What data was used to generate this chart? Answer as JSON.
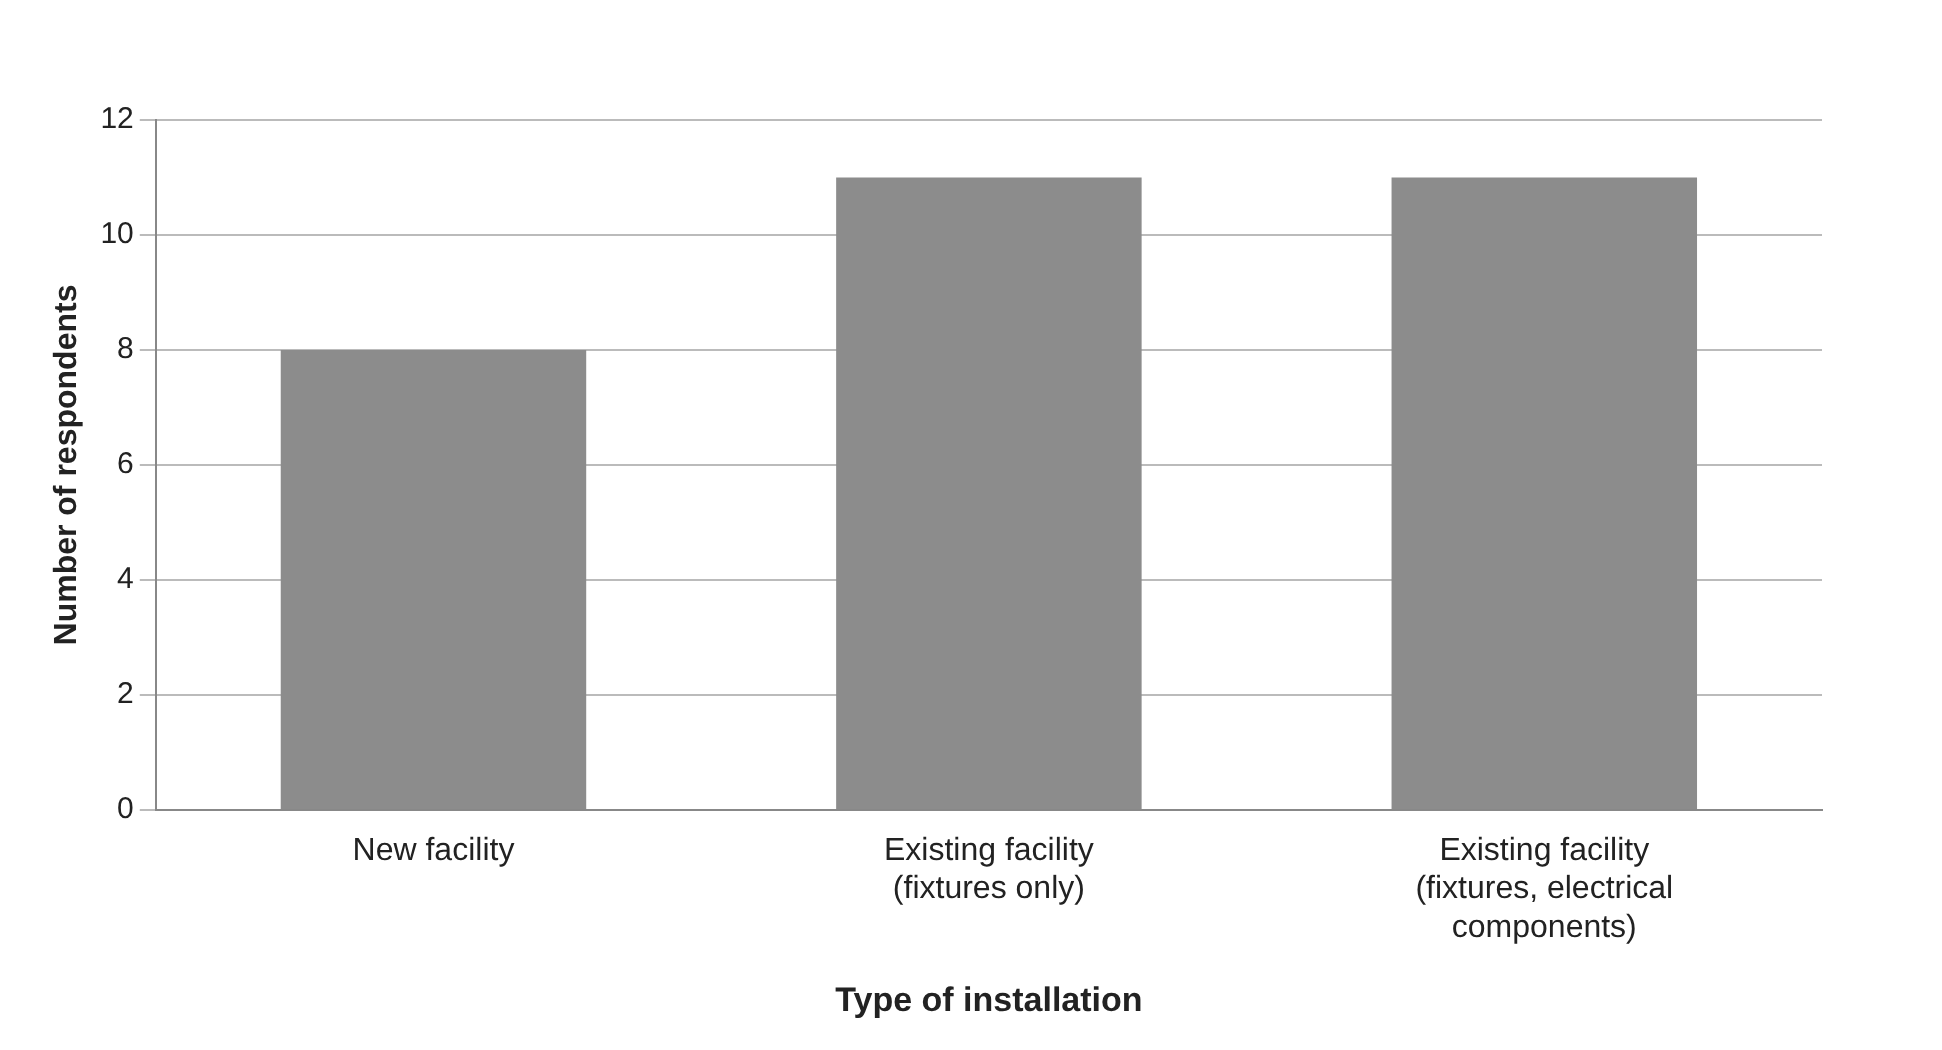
{
  "chart_data": {
    "type": "bar",
    "xlabel": "Type of installation",
    "ylabel": "Number of respondents",
    "categories": [
      "New facility",
      "Existing facility (fixtures only)",
      "Existing facility (fixtures, electrical components)"
    ],
    "values": [
      8,
      11,
      11
    ],
    "color": "#8c8c8c",
    "ylim": [
      0,
      12
    ],
    "yticks": [
      0,
      2,
      4,
      6,
      8,
      10,
      12
    ],
    "grid": "y"
  }
}
